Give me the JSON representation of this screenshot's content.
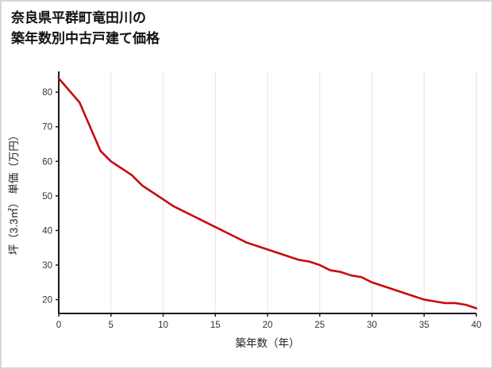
{
  "title": {
    "line1": "奈良県平群町竜田川の",
    "line2": "築年数別中古戸建て価格"
  },
  "chart_data": {
    "type": "line",
    "title": "奈良県平群町竜田川の築年数別中古戸建て価格",
    "xlabel": "築年数（年）",
    "ylabel": "坪（3.3㎡） 単価（万円）",
    "x": [
      0,
      1,
      2,
      3,
      4,
      5,
      6,
      7,
      8,
      9,
      10,
      11,
      12,
      13,
      14,
      15,
      16,
      17,
      18,
      19,
      20,
      21,
      22,
      23,
      24,
      25,
      26,
      27,
      28,
      29,
      30,
      31,
      32,
      33,
      34,
      35,
      36,
      37,
      38,
      39,
      40
    ],
    "values": [
      84,
      80.5,
      77,
      70,
      63,
      60,
      58,
      56,
      53,
      51,
      49,
      47,
      45.5,
      44,
      42.5,
      41,
      39.5,
      38,
      36.5,
      35.5,
      34.5,
      33.5,
      32.5,
      31.5,
      31,
      30,
      28.5,
      28,
      27,
      26.5,
      25,
      24,
      23,
      22,
      21,
      20,
      19.5,
      19,
      19,
      18.5,
      17.5
    ],
    "xlim": [
      0,
      40
    ],
    "ylim": [
      16,
      86
    ],
    "x_ticks": [
      0,
      5,
      10,
      15,
      20,
      25,
      30,
      35,
      40
    ],
    "y_ticks": [
      20,
      30,
      40,
      50,
      60,
      70,
      80
    ],
    "grid": "vertical-only",
    "legend": "none",
    "line_color": "#c90a0f",
    "axis_color": "#1a1a1a",
    "grid_color": "#e3e3e3",
    "tick_label_color": "#333333"
  }
}
